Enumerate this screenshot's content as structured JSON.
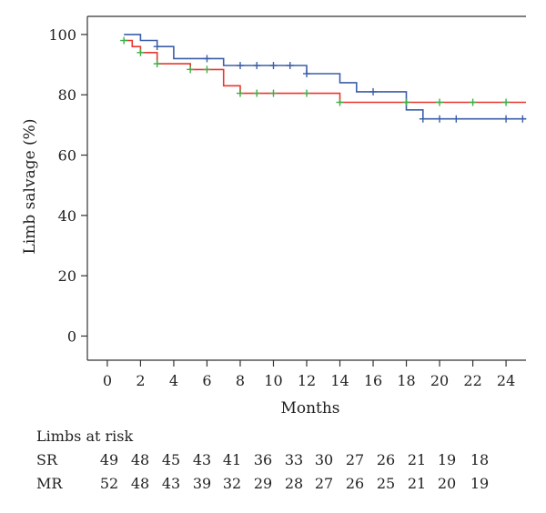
{
  "chart_data": {
    "type": "line",
    "title": "",
    "xlabel": "Months",
    "ylabel": "Limb salvage (%)",
    "xlim": [
      -1.2,
      25.2
    ],
    "ylim": [
      -8,
      106
    ],
    "x_ticks": [
      0,
      2,
      4,
      6,
      8,
      10,
      12,
      14,
      16,
      18,
      20,
      22,
      24
    ],
    "y_ticks": [
      0,
      20,
      40,
      60,
      80,
      100
    ],
    "grid": false,
    "legend": "none",
    "series": [
      {
        "color": "#3b5ea8",
        "step_points": [
          [
            1,
            100
          ],
          [
            2,
            100
          ],
          [
            2,
            98
          ],
          [
            3,
            98
          ],
          [
            3,
            96
          ],
          [
            4,
            96
          ],
          [
            4,
            92
          ],
          [
            7,
            92
          ],
          [
            7,
            89.7
          ],
          [
            12,
            89.7
          ],
          [
            12,
            87
          ],
          [
            14,
            87
          ],
          [
            14,
            84
          ],
          [
            15,
            84
          ],
          [
            15,
            81
          ],
          [
            18,
            81
          ],
          [
            18,
            75
          ],
          [
            19,
            75
          ],
          [
            19,
            72
          ],
          [
            25.2,
            72
          ]
        ],
        "censored_x": [
          3,
          6,
          8,
          9,
          10,
          11,
          12,
          16,
          19,
          20,
          21,
          24,
          25
        ],
        "censored_y": [
          96,
          92,
          89.7,
          89.7,
          89.7,
          89.7,
          87,
          81,
          72,
          72,
          72,
          72,
          72
        ]
      },
      {
        "color": "#e8372f",
        "step_points": [
          [
            1,
            98
          ],
          [
            1.5,
            98
          ],
          [
            1.5,
            96
          ],
          [
            2,
            96
          ],
          [
            2,
            94
          ],
          [
            3,
            94
          ],
          [
            3,
            90.3
          ],
          [
            5,
            90.3
          ],
          [
            5,
            88.4
          ],
          [
            7,
            88.4
          ],
          [
            7,
            83
          ],
          [
            8,
            83
          ],
          [
            8,
            80.5
          ],
          [
            14,
            80.5
          ],
          [
            14,
            77.5
          ],
          [
            25.2,
            77.5
          ]
        ],
        "censored_x": [
          1,
          2,
          3,
          5,
          6,
          8,
          9,
          10,
          12,
          14,
          18,
          20,
          22,
          24
        ],
        "censored_y": [
          98,
          94,
          90.3,
          88.4,
          88.4,
          80.5,
          80.5,
          80.5,
          80.5,
          77.5,
          77.5,
          77.5,
          77.5,
          77.5
        ],
        "marker_color": "#3fae49"
      }
    ]
  },
  "risk_table": {
    "title": "Limbs at risk",
    "rows": [
      {
        "label": "SR",
        "values": [
          "49",
          "48",
          "45",
          "43",
          "41",
          "36",
          "33",
          "30",
          "27",
          "26",
          "21",
          "19",
          "18"
        ]
      },
      {
        "label": "MR",
        "values": [
          "52",
          "48",
          "43",
          "39",
          "32",
          "29",
          "28",
          "27",
          "26",
          "25",
          "21",
          "20",
          "19"
        ]
      }
    ]
  }
}
